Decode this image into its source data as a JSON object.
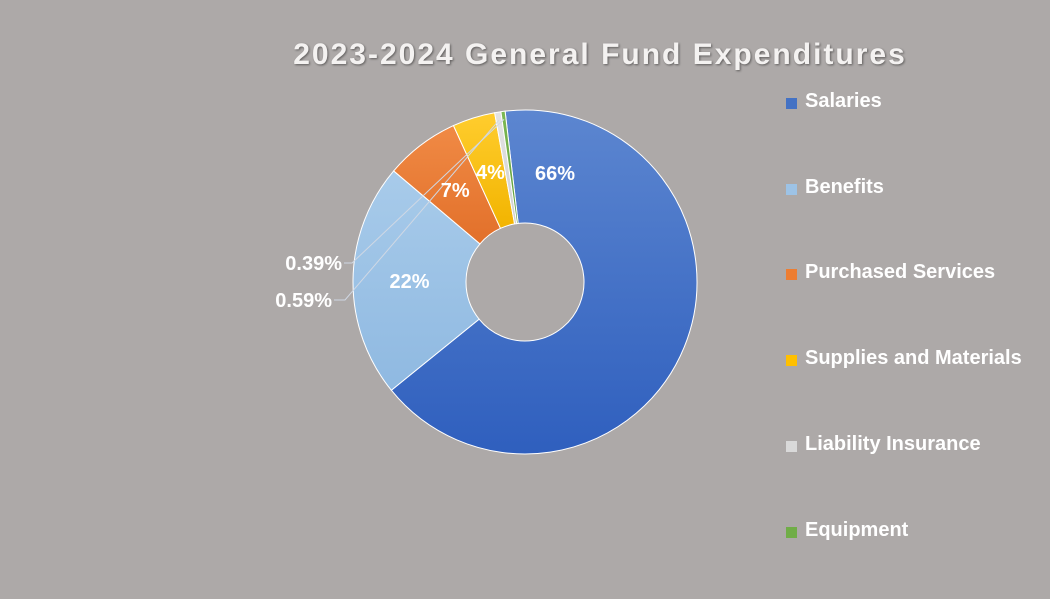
{
  "chart_data": {
    "type": "pie",
    "donut": true,
    "title": "2023-2024 General Fund Expenditures",
    "legend_position": "right",
    "slices": [
      {
        "name": "Salaries",
        "value": 66,
        "label": "66%",
        "color": "#4472c4"
      },
      {
        "name": "Benefits",
        "value": 22,
        "label": "22%",
        "color": "#9dc3e6"
      },
      {
        "name": "Purchased Services",
        "value": 7,
        "label": "7%",
        "color": "#ed7d31"
      },
      {
        "name": "Supplies and Materials",
        "value": 4,
        "label": "4%",
        "color": "#ffc000"
      },
      {
        "name": "Liability Insurance",
        "value": 0.59,
        "label": "0.59%",
        "color": "#d9d9d9"
      },
      {
        "name": "Equipment",
        "value": 0.39,
        "label": "0.39%",
        "color": "#70ad47"
      }
    ]
  }
}
